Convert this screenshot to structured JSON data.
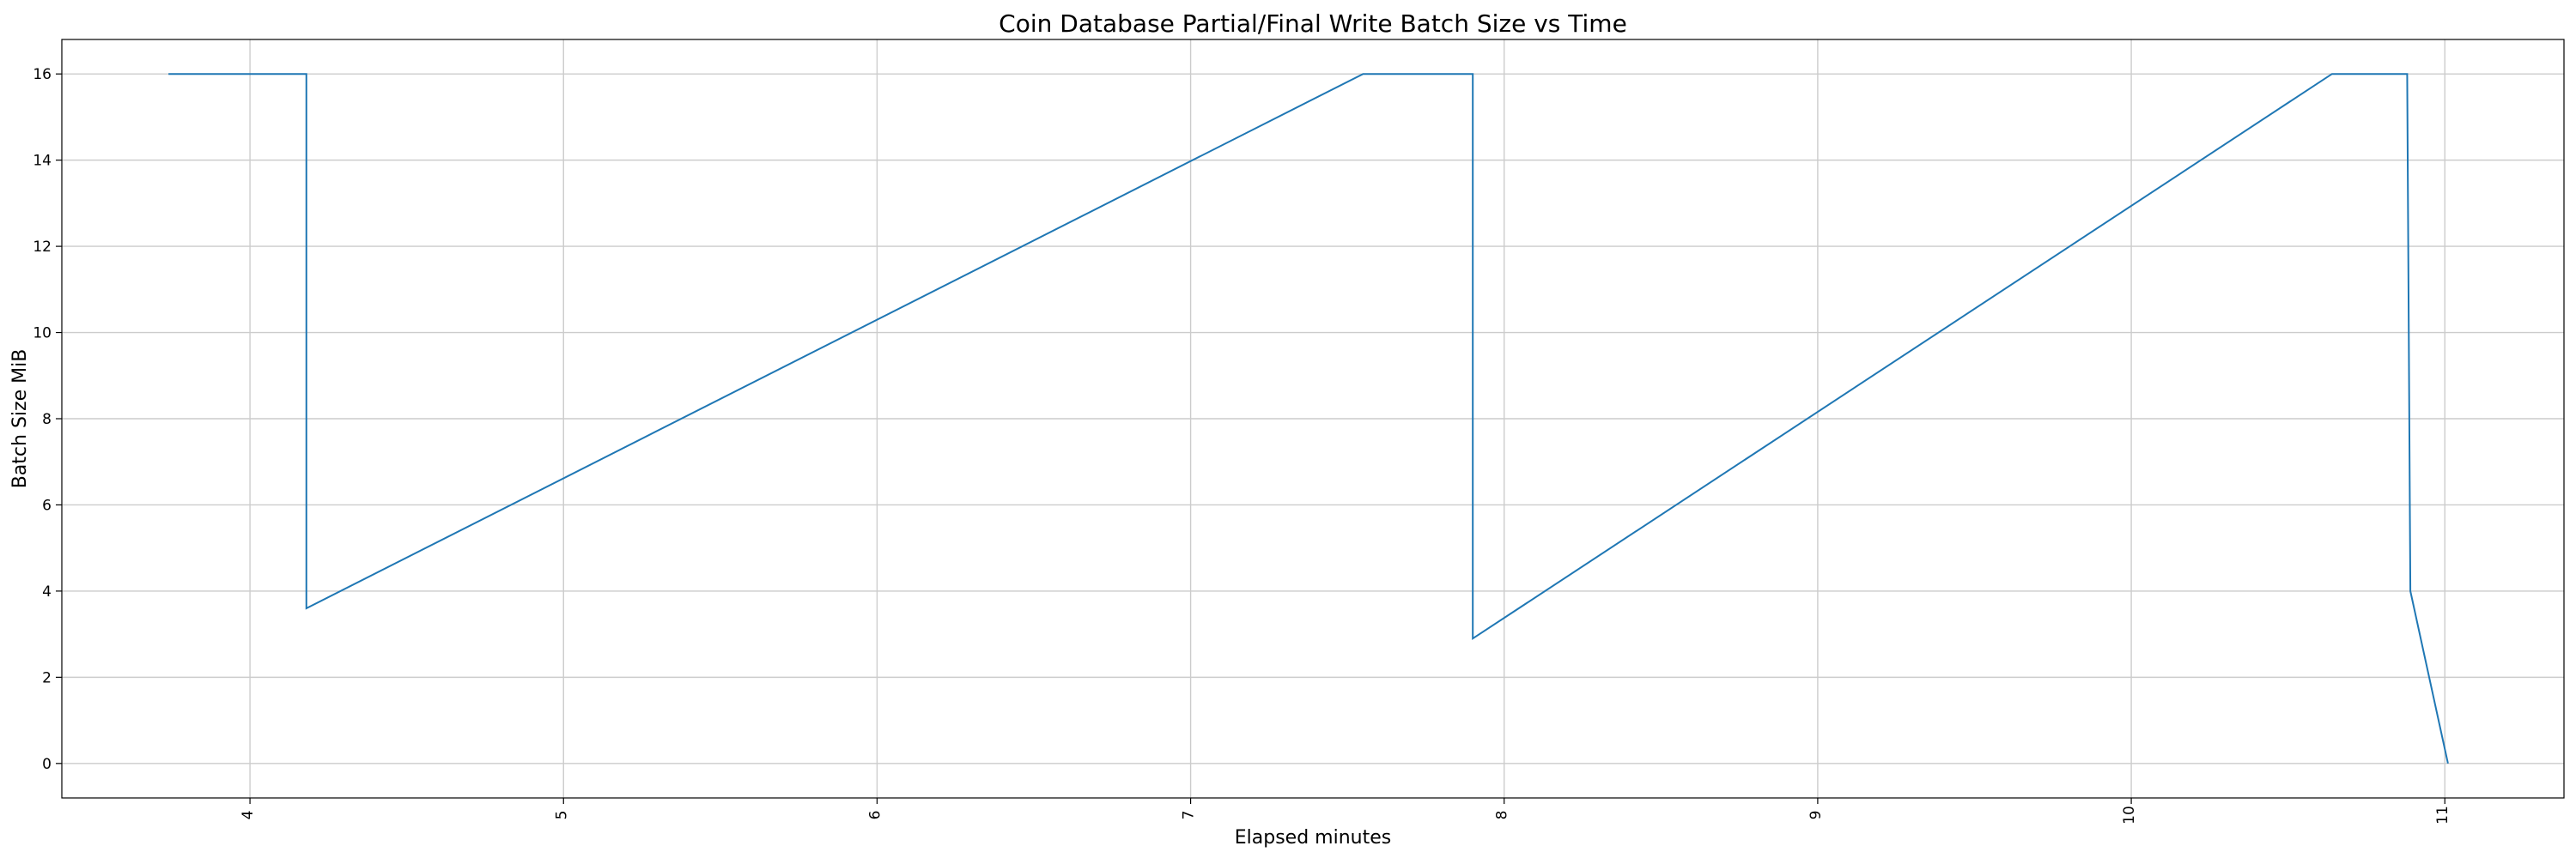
{
  "chart_data": {
    "type": "line",
    "title": "Coin Database Partial/Final Write Batch Size vs Time",
    "xlabel": "Elapsed minutes",
    "ylabel": "Batch Size MiB",
    "xlim": [
      3.4,
      11.38
    ],
    "ylim": [
      -0.8,
      16.8
    ],
    "xticks": [
      4,
      5,
      6,
      7,
      8,
      9,
      10,
      11
    ],
    "yticks": [
      0,
      2,
      4,
      6,
      8,
      10,
      12,
      14,
      16
    ],
    "grid": true,
    "series": [
      {
        "color": "#1f77b4",
        "x": [
          3.74,
          4.18,
          4.18,
          7.55,
          7.9,
          7.9,
          10.64,
          10.88,
          10.89,
          11.01
        ],
        "y": [
          16.0,
          16.0,
          3.6,
          16.0,
          16.0,
          2.9,
          16.0,
          16.0,
          4.0,
          0.0
        ]
      }
    ]
  }
}
